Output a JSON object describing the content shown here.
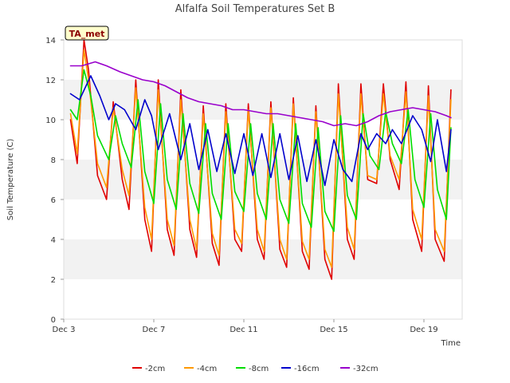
{
  "chart_data": {
    "type": "line",
    "title": "Alfalfa Soil Temperatures Set B",
    "xlabel": "Time",
    "ylabel": "Soil Temperature (C)",
    "xlim": [
      3,
      20.7
    ],
    "ylim": [
      0,
      14
    ],
    "x_ticks": [
      3,
      7,
      11,
      15,
      19
    ],
    "x_tick_labels": [
      "Dec 3",
      "Dec 7",
      "Dec 11",
      "Dec 15",
      "Dec 19"
    ],
    "y_ticks": [
      0,
      2,
      4,
      6,
      8,
      10,
      12,
      14
    ],
    "y_tick_labels": [
      "0",
      "2",
      "4",
      "6",
      "8",
      "10",
      "12",
      "14"
    ],
    "grid": "horizontal bands",
    "legend_position": "bottom",
    "badge_label": "TA_met",
    "series": [
      {
        "name": "-2cm",
        "color": "#e00000",
        "x": [
          3.3,
          3.6,
          3.9,
          4.1,
          4.5,
          4.9,
          5.2,
          5.6,
          5.9,
          6.2,
          6.6,
          6.9,
          7.2,
          7.6,
          7.9,
          8.2,
          8.6,
          8.9,
          9.2,
          9.6,
          9.9,
          10.2,
          10.6,
          10.9,
          11.2,
          11.6,
          11.9,
          12.2,
          12.6,
          12.9,
          13.2,
          13.6,
          13.9,
          14.2,
          14.6,
          14.9,
          15.2,
          15.6,
          15.9,
          16.2,
          16.5,
          16.9,
          17.2,
          17.5,
          17.9,
          18.2,
          18.5,
          18.9,
          19.2,
          19.5,
          19.9,
          20.2
        ],
        "y": [
          10.0,
          7.8,
          14.0,
          12.5,
          7.2,
          6.0,
          10.9,
          7.0,
          5.5,
          12.0,
          5.0,
          3.4,
          12.0,
          4.5,
          3.2,
          11.5,
          4.5,
          3.1,
          10.7,
          3.8,
          2.7,
          10.8,
          4.0,
          3.4,
          10.8,
          4.0,
          3.0,
          10.9,
          3.5,
          2.6,
          11.1,
          3.4,
          2.5,
          10.7,
          3.0,
          2.0,
          11.8,
          4.0,
          3.0,
          11.8,
          7.0,
          6.8,
          11.8,
          8.0,
          6.5,
          11.9,
          5.0,
          3.4,
          11.7,
          4.0,
          2.9,
          11.5
        ]
      },
      {
        "name": "-4cm",
        "color": "#ff9900",
        "x": [
          3.3,
          3.6,
          3.9,
          4.1,
          4.5,
          4.9,
          5.2,
          5.6,
          5.9,
          6.2,
          6.6,
          6.9,
          7.2,
          7.6,
          7.9,
          8.2,
          8.6,
          8.9,
          9.2,
          9.6,
          9.9,
          10.2,
          10.6,
          10.9,
          11.2,
          11.6,
          11.9,
          12.2,
          12.6,
          12.9,
          13.2,
          13.6,
          13.9,
          14.2,
          14.6,
          14.9,
          15.2,
          15.6,
          15.9,
          16.2,
          16.5,
          16.9,
          17.2,
          17.5,
          17.9,
          18.2,
          18.5,
          18.9,
          19.2,
          19.5,
          19.9,
          20.2
        ],
        "y": [
          10.3,
          8.3,
          13.5,
          12.0,
          7.8,
          6.6,
          10.6,
          7.5,
          6.2,
          11.6,
          5.6,
          4.0,
          11.5,
          5.0,
          3.7,
          11.0,
          5.0,
          3.5,
          10.3,
          4.3,
          3.2,
          10.4,
          4.5,
          3.8,
          10.5,
          4.5,
          3.4,
          10.6,
          4.0,
          3.0,
          10.8,
          3.9,
          3.0,
          10.4,
          3.5,
          2.6,
          11.3,
          4.6,
          3.5,
          11.3,
          7.2,
          7.0,
          11.3,
          8.2,
          7.0,
          11.4,
          5.5,
          4.0,
          11.2,
          4.5,
          3.4,
          11.0
        ]
      },
      {
        "name": "-8cm",
        "color": "#00dd00",
        "x": [
          3.3,
          3.6,
          3.9,
          4.2,
          4.5,
          5.0,
          5.3,
          5.6,
          6.0,
          6.3,
          6.6,
          7.0,
          7.3,
          7.6,
          8.0,
          8.3,
          8.6,
          9.0,
          9.3,
          9.6,
          10.0,
          10.3,
          10.6,
          11.0,
          11.3,
          11.6,
          12.0,
          12.3,
          12.6,
          13.0,
          13.3,
          13.6,
          14.0,
          14.3,
          14.6,
          15.0,
          15.3,
          15.6,
          16.0,
          16.3,
          16.6,
          17.0,
          17.3,
          17.6,
          18.0,
          18.3,
          18.6,
          19.0,
          19.3,
          19.6,
          20.0,
          20.2
        ],
        "y": [
          10.5,
          10.0,
          12.5,
          11.2,
          9.2,
          8.0,
          10.2,
          8.8,
          7.6,
          11.0,
          7.4,
          5.8,
          10.8,
          7.0,
          5.5,
          10.3,
          6.8,
          5.3,
          9.8,
          6.3,
          5.0,
          9.8,
          6.4,
          5.4,
          9.8,
          6.3,
          5.0,
          9.8,
          6.0,
          4.8,
          9.8,
          5.8,
          4.6,
          9.6,
          5.4,
          4.4,
          10.2,
          6.2,
          5.0,
          10.3,
          8.2,
          7.5,
          10.4,
          8.8,
          7.8,
          10.5,
          7.0,
          5.6,
          10.3,
          6.5,
          5.0,
          9.6
        ]
      },
      {
        "name": "-16cm",
        "color": "#0000cc",
        "x": [
          3.3,
          3.7,
          4.2,
          4.6,
          5.0,
          5.3,
          5.7,
          6.2,
          6.6,
          6.9,
          7.2,
          7.7,
          8.2,
          8.6,
          9.0,
          9.4,
          9.8,
          10.2,
          10.6,
          11.0,
          11.4,
          11.8,
          12.2,
          12.6,
          13.0,
          13.4,
          13.8,
          14.2,
          14.6,
          15.0,
          15.4,
          15.8,
          16.2,
          16.5,
          16.9,
          17.3,
          17.6,
          18.0,
          18.5,
          18.9,
          19.3,
          19.6,
          20.0,
          20.2
        ],
        "y": [
          11.3,
          11.0,
          12.2,
          11.2,
          10.0,
          10.8,
          10.5,
          9.5,
          11.0,
          10.2,
          8.5,
          10.3,
          8.0,
          9.8,
          7.5,
          9.5,
          7.4,
          9.3,
          7.3,
          9.3,
          7.2,
          9.3,
          7.1,
          9.3,
          7.0,
          9.2,
          6.9,
          9.0,
          6.7,
          9.0,
          7.5,
          6.9,
          9.3,
          8.5,
          9.3,
          8.8,
          9.5,
          8.8,
          10.2,
          9.5,
          7.9,
          10.0,
          7.4,
          9.5
        ]
      },
      {
        "name": "-32cm",
        "color": "#9900cc",
        "x": [
          3.3,
          3.8,
          4.4,
          4.9,
          5.5,
          6.0,
          6.5,
          7.0,
          7.5,
          8.0,
          8.5,
          9.0,
          9.5,
          10.0,
          10.5,
          11.0,
          11.5,
          12.0,
          12.5,
          13.0,
          13.5,
          14.0,
          14.5,
          15.0,
          15.5,
          16.0,
          16.5,
          17.0,
          17.5,
          18.0,
          18.5,
          19.0,
          19.5,
          20.0,
          20.2
        ],
        "y": [
          12.7,
          12.7,
          12.9,
          12.7,
          12.4,
          12.2,
          12.0,
          11.9,
          11.7,
          11.4,
          11.1,
          10.9,
          10.8,
          10.7,
          10.5,
          10.5,
          10.4,
          10.3,
          10.3,
          10.2,
          10.1,
          10.0,
          9.9,
          9.7,
          9.8,
          9.7,
          9.9,
          10.2,
          10.4,
          10.5,
          10.6,
          10.5,
          10.4,
          10.2,
          10.1
        ]
      }
    ]
  }
}
